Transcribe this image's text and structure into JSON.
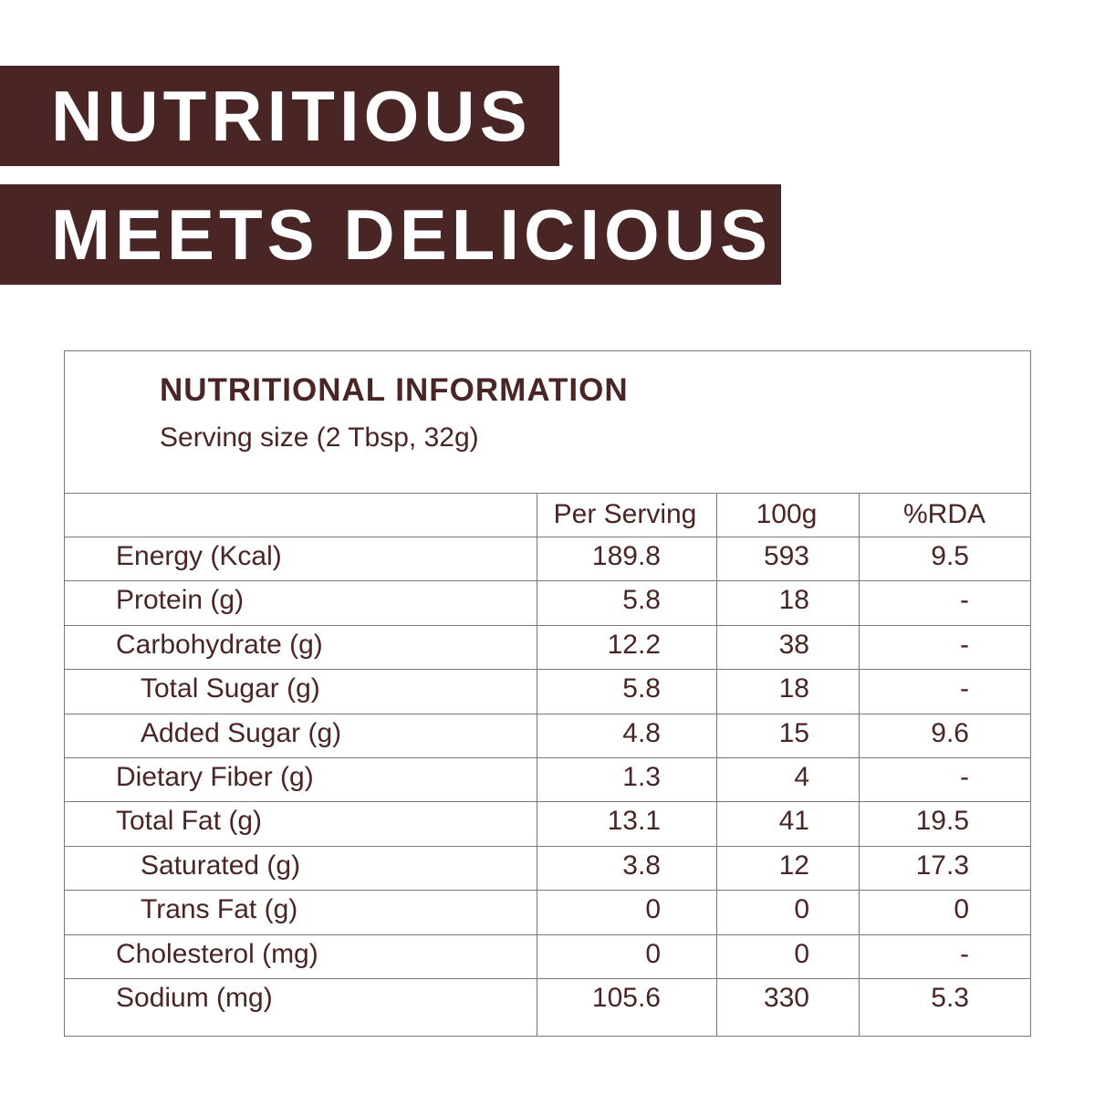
{
  "header": {
    "line1": "NUTRITIOUS",
    "line2": "MEETS DELICIOUS"
  },
  "table": {
    "title": "NUTRITIONAL INFORMATION",
    "subtitle": "Serving size (2 Tbsp, 32g)",
    "columns": [
      "Per Serving",
      "100g",
      "%RDA"
    ],
    "rows": [
      [
        "Energy (Kcal)",
        "189.8",
        "593",
        "9.5"
      ],
      [
        "Protein (g)",
        "5.8",
        "18",
        "-"
      ],
      [
        "Carbohydrate (g)",
        "12.2",
        "38",
        "-"
      ],
      [
        "Total Sugar (g)",
        "5.8",
        "18",
        "-"
      ],
      [
        "Added Sugar (g)",
        "4.8",
        "15",
        "9.6"
      ],
      [
        "Dietary Fiber (g)",
        "1.3",
        "4",
        "-"
      ],
      [
        "Total Fat (g)",
        "13.1",
        "41",
        "19.5"
      ],
      [
        "Saturated (g)",
        "3.8",
        "12",
        "17.3"
      ],
      [
        "Trans Fat (g)",
        "0",
        "0",
        "0"
      ],
      [
        "Cholesterol (mg)",
        "0",
        "0",
        "-"
      ],
      [
        "Sodium (mg)",
        "105.6",
        "330",
        "5.3"
      ]
    ]
  }
}
